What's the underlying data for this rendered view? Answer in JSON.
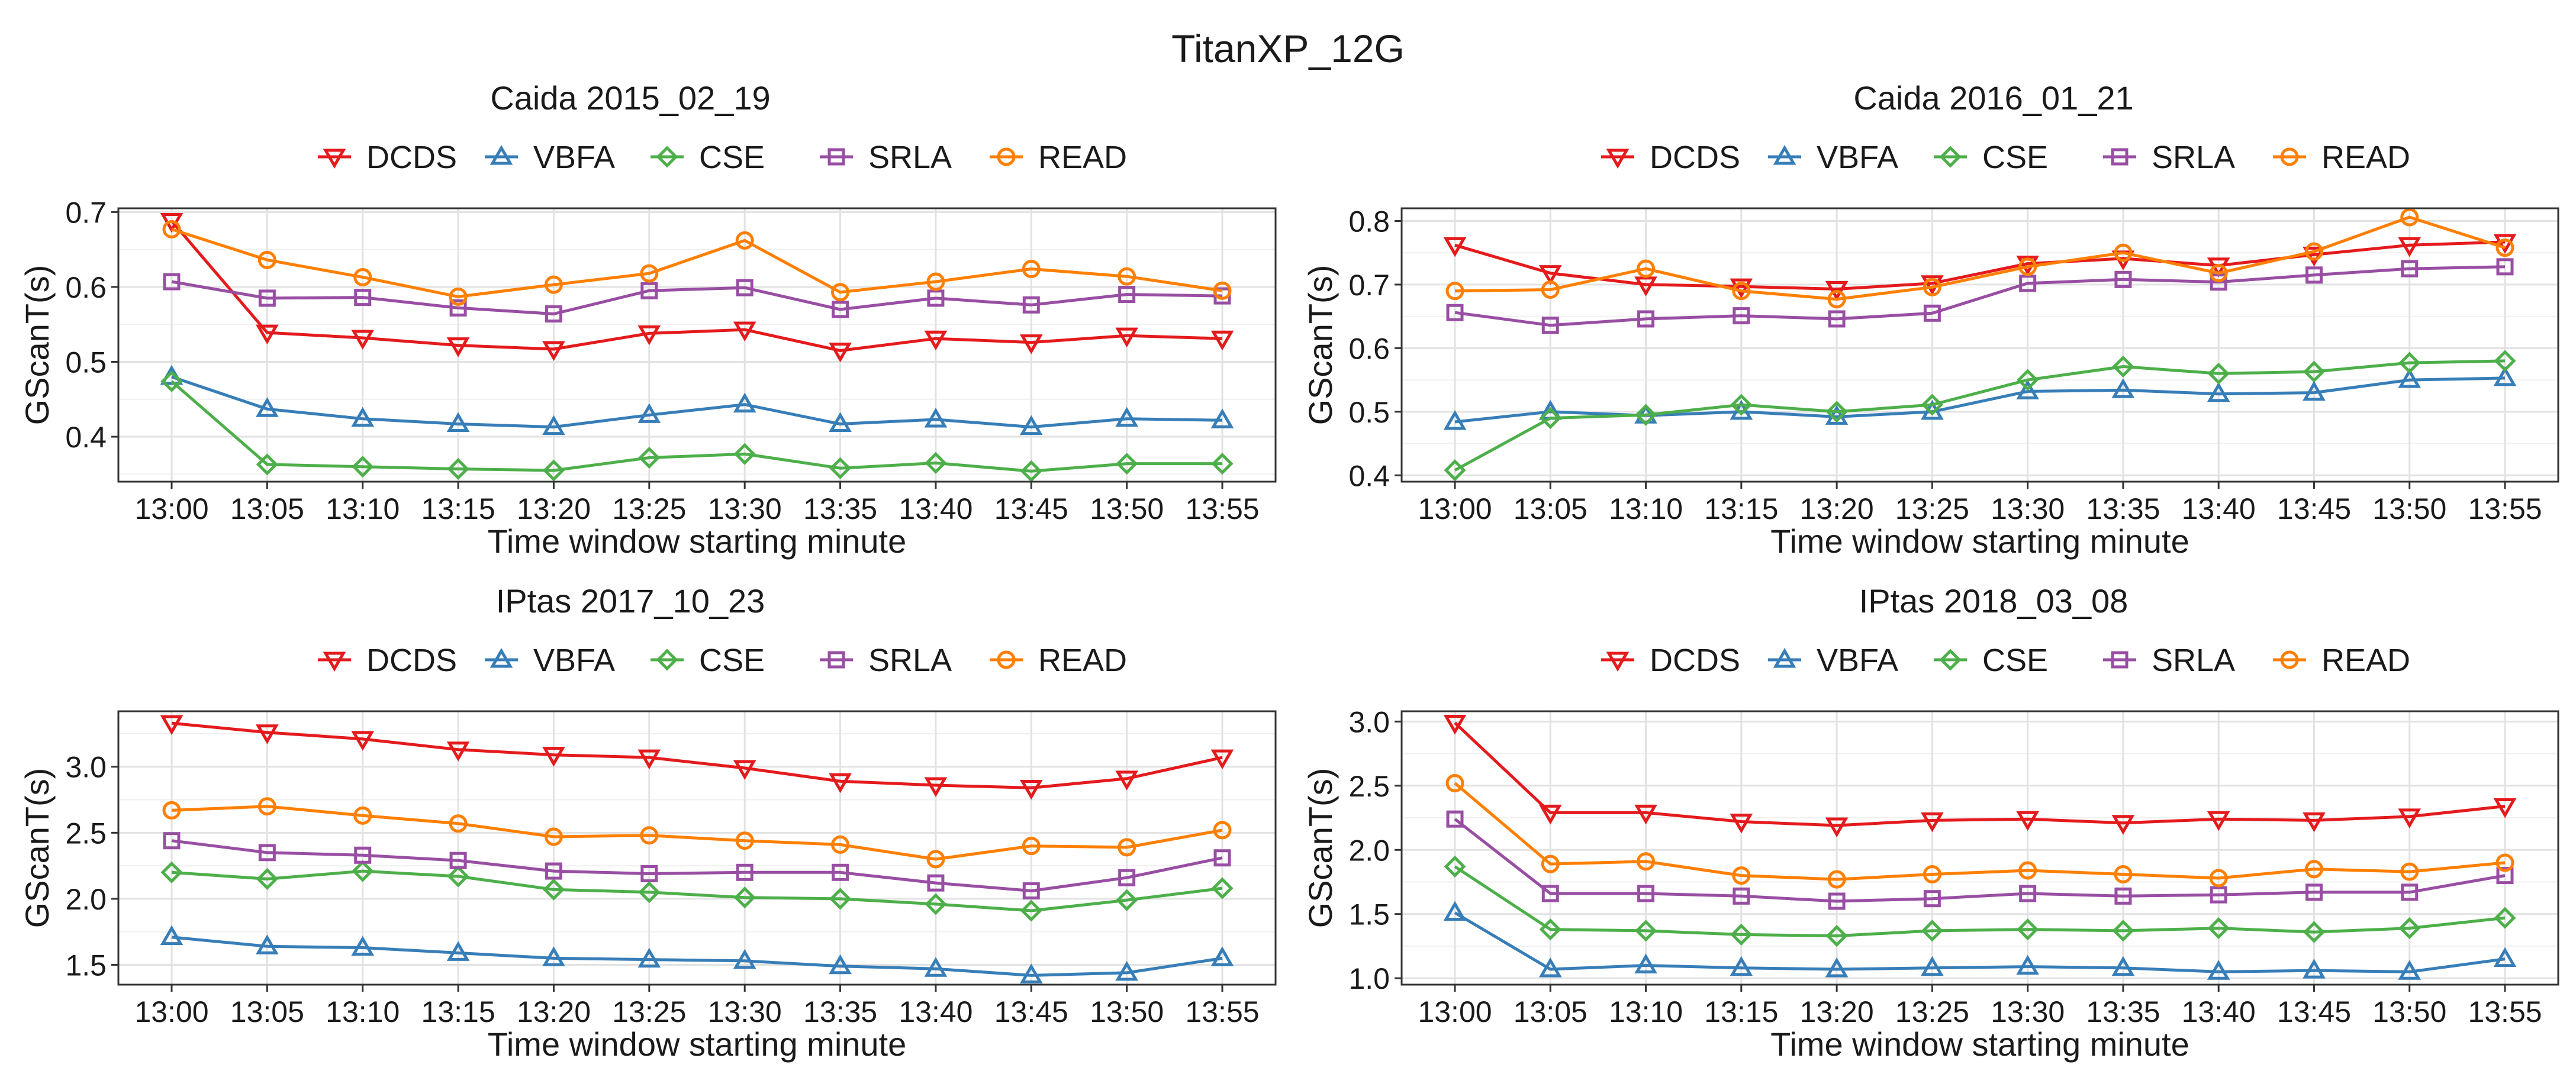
{
  "figure_title": "TitanXP_12G",
  "series_colors": {
    "DCDS": "#e41a1c",
    "VBFA": "#377eb8",
    "CSE": "#4daf4a",
    "SRLA": "#984ea3",
    "READ": "#ff7f00"
  },
  "series_markers": {
    "DCDS": "triangle-down",
    "VBFA": "triangle-up",
    "CSE": "diamond",
    "SRLA": "square",
    "READ": "circle"
  },
  "chart_data": [
    {
      "type": "line",
      "title": "Caida 2015_02_19",
      "xlabel": "Time window starting minute",
      "ylabel": "GScanT(s)",
      "categories": [
        "13:00",
        "13:05",
        "13:10",
        "13:15",
        "13:20",
        "13:25",
        "13:30",
        "13:35",
        "13:40",
        "13:45",
        "13:50",
        "13:55"
      ],
      "ylim": [
        0.34,
        0.705
      ],
      "yticks": [
        0.4,
        0.5,
        0.6,
        0.7
      ],
      "ytick_labels": [
        "0.4",
        "0.5",
        "0.6",
        "0.7"
      ],
      "grid": true,
      "legend_position": "top",
      "series": [
        {
          "name": "DCDS",
          "values": [
            0.688,
            0.539,
            0.532,
            0.522,
            0.517,
            0.538,
            0.543,
            0.515,
            0.531,
            0.526,
            0.535,
            0.531
          ]
        },
        {
          "name": "VBFA",
          "values": [
            0.48,
            0.437,
            0.424,
            0.417,
            0.413,
            0.429,
            0.443,
            0.417,
            0.423,
            0.413,
            0.424,
            0.422
          ]
        },
        {
          "name": "CSE",
          "values": [
            0.474,
            0.363,
            0.36,
            0.357,
            0.355,
            0.372,
            0.377,
            0.358,
            0.365,
            0.354,
            0.364,
            0.364
          ]
        },
        {
          "name": "SRLA",
          "values": [
            0.607,
            0.585,
            0.586,
            0.572,
            0.564,
            0.595,
            0.599,
            0.57,
            0.585,
            0.576,
            0.59,
            0.588
          ]
        },
        {
          "name": "READ",
          "values": [
            0.677,
            0.636,
            0.613,
            0.587,
            0.603,
            0.618,
            0.662,
            0.593,
            0.607,
            0.624,
            0.614,
            0.595
          ]
        }
      ]
    },
    {
      "type": "line",
      "title": "Caida 2016_01_21",
      "xlabel": "Time window starting minute",
      "ylabel": "GScanT(s)",
      "categories": [
        "13:00",
        "13:05",
        "13:10",
        "13:15",
        "13:20",
        "13:25",
        "13:30",
        "13:35",
        "13:40",
        "13:45",
        "13:50",
        "13:55"
      ],
      "ylim": [
        0.39,
        0.82
      ],
      "yticks": [
        0.4,
        0.5,
        0.6,
        0.7,
        0.8
      ],
      "ytick_labels": [
        "0.4",
        "0.5",
        "0.6",
        "0.7",
        "0.8"
      ],
      "grid": true,
      "legend_position": "top",
      "series": [
        {
          "name": "DCDS",
          "values": [
            0.762,
            0.718,
            0.7,
            0.697,
            0.693,
            0.702,
            0.733,
            0.741,
            0.73,
            0.747,
            0.762,
            0.767
          ]
        },
        {
          "name": "VBFA",
          "values": [
            0.484,
            0.5,
            0.494,
            0.5,
            0.492,
            0.5,
            0.532,
            0.534,
            0.528,
            0.53,
            0.55,
            0.553
          ]
        },
        {
          "name": "CSE",
          "values": [
            0.408,
            0.49,
            0.495,
            0.511,
            0.5,
            0.511,
            0.55,
            0.571,
            0.56,
            0.563,
            0.577,
            0.58
          ]
        },
        {
          "name": "SRLA",
          "values": [
            0.656,
            0.636,
            0.646,
            0.651,
            0.646,
            0.655,
            0.702,
            0.708,
            0.704,
            0.715,
            0.725,
            0.728
          ]
        },
        {
          "name": "READ",
          "values": [
            0.69,
            0.692,
            0.725,
            0.69,
            0.677,
            0.696,
            0.728,
            0.75,
            0.718,
            0.752,
            0.806,
            0.758
          ]
        }
      ]
    },
    {
      "type": "line",
      "title": "IPtas 2017_10_23",
      "xlabel": "Time window starting minute",
      "ylabel": "GScanT(s)",
      "categories": [
        "13:00",
        "13:05",
        "13:10",
        "13:15",
        "13:20",
        "13:25",
        "13:30",
        "13:35",
        "13:40",
        "13:45",
        "13:50",
        "13:55"
      ],
      "ylim": [
        1.35,
        3.42
      ],
      "yticks": [
        1.5,
        2.0,
        2.5,
        3.0
      ],
      "ytick_labels": [
        "1.5",
        "2.0",
        "2.5",
        "3.0"
      ],
      "grid": true,
      "legend_position": "top",
      "series": [
        {
          "name": "DCDS",
          "values": [
            3.33,
            3.26,
            3.21,
            3.13,
            3.09,
            3.07,
            2.99,
            2.89,
            2.86,
            2.84,
            2.91,
            3.07
          ]
        },
        {
          "name": "VBFA",
          "values": [
            1.71,
            1.64,
            1.63,
            1.59,
            1.55,
            1.54,
            1.53,
            1.49,
            1.47,
            1.42,
            1.44,
            1.55
          ]
        },
        {
          "name": "CSE",
          "values": [
            2.2,
            2.15,
            2.21,
            2.17,
            2.07,
            2.05,
            2.01,
            2.0,
            1.96,
            1.91,
            1.99,
            2.08
          ]
        },
        {
          "name": "SRLA",
          "values": [
            2.44,
            2.35,
            2.33,
            2.29,
            2.21,
            2.19,
            2.2,
            2.2,
            2.12,
            2.06,
            2.16,
            2.31
          ]
        },
        {
          "name": "READ",
          "values": [
            2.67,
            2.7,
            2.63,
            2.57,
            2.47,
            2.48,
            2.44,
            2.41,
            2.3,
            2.4,
            2.39,
            2.52
          ]
        }
      ]
    },
    {
      "type": "line",
      "title": "IPtas 2018_03_08",
      "xlabel": "Time window starting minute",
      "ylabel": "GScanT(s)",
      "categories": [
        "13:00",
        "13:05",
        "13:10",
        "13:15",
        "13:20",
        "13:25",
        "13:30",
        "13:35",
        "13:40",
        "13:45",
        "13:50",
        "13:55"
      ],
      "ylim": [
        0.95,
        3.08
      ],
      "yticks": [
        1.0,
        1.5,
        2.0,
        2.5,
        3.0
      ],
      "ytick_labels": [
        "1.0",
        "1.5",
        "2.0",
        "2.5",
        "3.0"
      ],
      "grid": true,
      "legend_position": "top",
      "series": [
        {
          "name": "DCDS",
          "values": [
            2.99,
            2.29,
            2.29,
            2.22,
            2.19,
            2.23,
            2.24,
            2.21,
            2.24,
            2.23,
            2.26,
            2.34
          ]
        },
        {
          "name": "VBFA",
          "values": [
            1.51,
            1.07,
            1.1,
            1.08,
            1.07,
            1.08,
            1.09,
            1.08,
            1.05,
            1.06,
            1.05,
            1.15
          ]
        },
        {
          "name": "CSE",
          "values": [
            1.87,
            1.38,
            1.37,
            1.34,
            1.33,
            1.37,
            1.38,
            1.37,
            1.39,
            1.36,
            1.39,
            1.47
          ]
        },
        {
          "name": "SRLA",
          "values": [
            2.24,
            1.66,
            1.66,
            1.64,
            1.6,
            1.62,
            1.66,
            1.64,
            1.65,
            1.67,
            1.67,
            1.8
          ]
        },
        {
          "name": "READ",
          "values": [
            2.52,
            1.89,
            1.91,
            1.8,
            1.77,
            1.81,
            1.84,
            1.81,
            1.78,
            1.85,
            1.83,
            1.9
          ]
        }
      ]
    }
  ]
}
